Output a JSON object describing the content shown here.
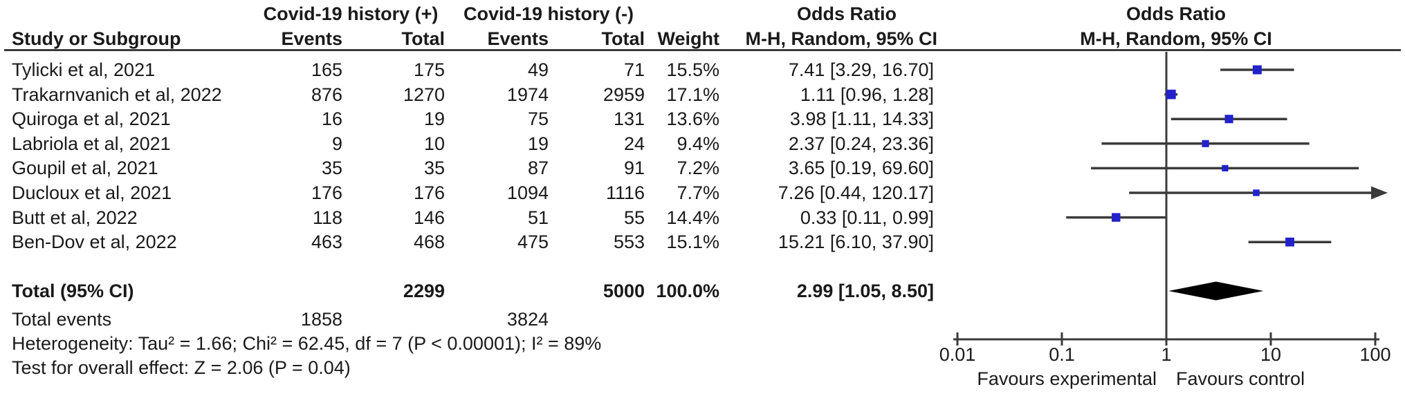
{
  "header": {
    "group_positive": "Covid-19 history (+)",
    "group_negative": "Covid-19 history (-)",
    "or_column_title": "Odds Ratio",
    "or_column_subtitle": "M-H, Random, 95% CI",
    "plot_column_title": "Odds Ratio",
    "plot_column_subtitle": "M-H, Random, 95% CI",
    "study_col": "Study or Subgroup",
    "events_col_1": "Events",
    "total_col_1": "Total",
    "events_col_2": "Events",
    "total_col_2": "Total",
    "weight_col": "Weight"
  },
  "rows": [
    {
      "study": "Tylicki et al, 2021",
      "events1": "165",
      "total1": "175",
      "events2": "49",
      "total2": "71",
      "weight": "15.5%",
      "or_ci": "7.41 [3.29, 16.70]"
    },
    {
      "study": "Trakarnvanich et al, 2022",
      "events1": "876",
      "total1": "1270",
      "events2": "1974",
      "total2": "2959",
      "weight": "17.1%",
      "or_ci": "1.11 [0.96, 1.28]"
    },
    {
      "study": "Quiroga et al, 2021",
      "events1": "16",
      "total1": "19",
      "events2": "75",
      "total2": "131",
      "weight": "13.6%",
      "or_ci": "3.98 [1.11, 14.33]"
    },
    {
      "study": "Labriola et al, 2021",
      "events1": "9",
      "total1": "10",
      "events2": "19",
      "total2": "24",
      "weight": "9.4%",
      "or_ci": "2.37 [0.24, 23.36]"
    },
    {
      "study": "Goupil et al, 2021",
      "events1": "35",
      "total1": "35",
      "events2": "87",
      "total2": "91",
      "weight": "7.2%",
      "or_ci": "3.65 [0.19, 69.60]"
    },
    {
      "study": "Ducloux et al, 2021",
      "events1": "176",
      "total1": "176",
      "events2": "1094",
      "total2": "1116",
      "weight": "7.7%",
      "or_ci": "7.26 [0.44, 120.17]"
    },
    {
      "study": "Butt et al, 2022",
      "events1": "118",
      "total1": "146",
      "events2": "51",
      "total2": "55",
      "weight": "14.4%",
      "or_ci": "0.33 [0.11, 0.99]"
    },
    {
      "study": "Ben-Dov et al, 2022",
      "events1": "463",
      "total1": "468",
      "events2": "475",
      "total2": "553",
      "weight": "15.1%",
      "or_ci": "15.21 [6.10, 37.90]"
    }
  ],
  "totals": {
    "label": "Total (95% CI)",
    "total1": "2299",
    "total2": "5000",
    "weight": "100.0%",
    "or_ci": "2.99 [1.05, 8.50]",
    "events_label": "Total events",
    "events1": "1858",
    "events2": "3824"
  },
  "stats": {
    "heterogeneity": "Heterogeneity: Tau² = 1.66; Chi² = 62.45, df = 7 (P < 0.00001); I² = 89%",
    "overall_effect": "Test for overall effect: Z = 2.06 (P = 0.04)"
  },
  "colors": {
    "marker_blue": "#2222cc",
    "diamond_black": "#000000",
    "line_gray": "#3b3b3b"
  },
  "chart_data": {
    "type": "scatter",
    "subtype": "forest_plot",
    "effect_measure": "Odds Ratio (M-H, Random, 95% CI)",
    "x_scale": "log10",
    "xlim": [
      0.01,
      100
    ],
    "null_line": 1,
    "x_ticks": [
      0.01,
      0.1,
      1,
      10,
      100
    ],
    "x_tick_labels": [
      "0.01",
      "0.1",
      "1",
      "10",
      "100"
    ],
    "favours_left": "Favours experimental",
    "favours_right": "Favours control",
    "studies": [
      {
        "name": "Tylicki et al, 2021",
        "or": 7.41,
        "ci_low": 3.29,
        "ci_high": 16.7,
        "weight_pct": 15.5,
        "arrow_high": false
      },
      {
        "name": "Trakarnvanich et al, 2022",
        "or": 1.11,
        "ci_low": 0.96,
        "ci_high": 1.28,
        "weight_pct": 17.1,
        "arrow_high": false
      },
      {
        "name": "Quiroga et al, 2021",
        "or": 3.98,
        "ci_low": 1.11,
        "ci_high": 14.33,
        "weight_pct": 13.6,
        "arrow_high": false
      },
      {
        "name": "Labriola et al, 2021",
        "or": 2.37,
        "ci_low": 0.24,
        "ci_high": 23.36,
        "weight_pct": 9.4,
        "arrow_high": false
      },
      {
        "name": "Goupil et al, 2021",
        "or": 3.65,
        "ci_low": 0.19,
        "ci_high": 69.6,
        "weight_pct": 7.2,
        "arrow_high": false
      },
      {
        "name": "Ducloux et al, 2021",
        "or": 7.26,
        "ci_low": 0.44,
        "ci_high": 120.17,
        "weight_pct": 7.7,
        "arrow_high": true
      },
      {
        "name": "Butt et al, 2022",
        "or": 0.33,
        "ci_low": 0.11,
        "ci_high": 0.99,
        "weight_pct": 14.4,
        "arrow_high": false
      },
      {
        "name": "Ben-Dov et al, 2022",
        "or": 15.21,
        "ci_low": 6.1,
        "ci_high": 37.9,
        "weight_pct": 15.1,
        "arrow_high": false
      }
    ],
    "total": {
      "name": "Total (95% CI)",
      "or": 2.99,
      "ci_low": 1.05,
      "ci_high": 8.5,
      "weight_pct": 100.0,
      "shape": "diamond"
    }
  }
}
